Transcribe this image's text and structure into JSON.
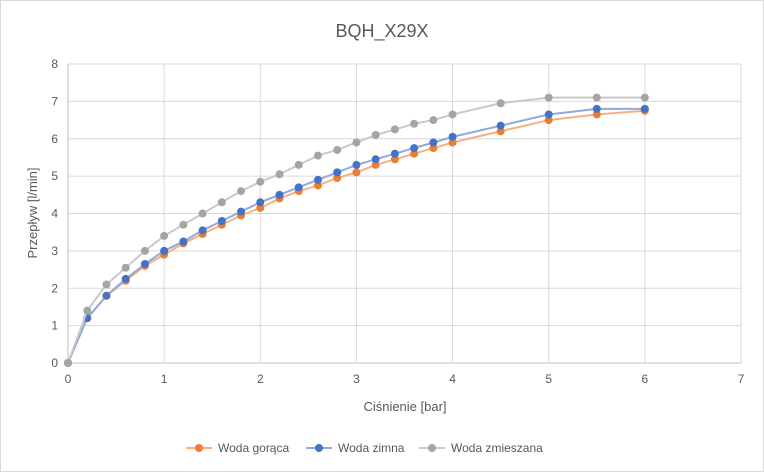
{
  "chart_data": {
    "type": "line",
    "title": "BQH_X29X",
    "xlabel": "Ciśnienie [bar]",
    "ylabel": "Przepływ [l/min]",
    "xlim": [
      0,
      7
    ],
    "ylim": [
      0,
      8
    ],
    "xticks": [
      "0",
      "1",
      "2",
      "3",
      "4",
      "5",
      "6",
      "7"
    ],
    "yticks": [
      "0",
      "1",
      "2",
      "3",
      "4",
      "5",
      "6",
      "7",
      "8"
    ],
    "grid": true,
    "legend_position": "bottom",
    "x": [
      0,
      0.2,
      0.4,
      0.6,
      0.8,
      1.0,
      1.2,
      1.4,
      1.6,
      1.8,
      2.0,
      2.2,
      2.4,
      2.6,
      2.8,
      3.0,
      3.2,
      3.4,
      3.6,
      3.8,
      4.0,
      4.5,
      5.0,
      5.5,
      6.0
    ],
    "series": [
      {
        "name": "Woda gorąca",
        "color": "#ED7D31",
        "line": "#F4B183",
        "values": [
          0,
          1.2,
          1.8,
          2.2,
          2.6,
          2.9,
          3.2,
          3.45,
          3.7,
          3.95,
          4.15,
          4.4,
          4.6,
          4.75,
          4.95,
          5.1,
          5.3,
          5.45,
          5.6,
          5.75,
          5.9,
          6.2,
          6.5,
          6.65,
          6.75
        ]
      },
      {
        "name": "Woda zimna",
        "color": "#4472C4",
        "line": "#8FAADC",
        "values": [
          0,
          1.2,
          1.8,
          2.25,
          2.65,
          3.0,
          3.25,
          3.55,
          3.8,
          4.05,
          4.3,
          4.5,
          4.7,
          4.9,
          5.1,
          5.3,
          5.45,
          5.6,
          5.75,
          5.9,
          6.05,
          6.35,
          6.65,
          6.8,
          6.8
        ]
      },
      {
        "name": "Woda zmieszana",
        "color": "#A5A5A5",
        "line": "#C9C9C9",
        "values": [
          0,
          1.4,
          2.1,
          2.55,
          3.0,
          3.4,
          3.7,
          4.0,
          4.3,
          4.6,
          4.85,
          5.05,
          5.3,
          5.55,
          5.7,
          5.9,
          6.1,
          6.25,
          6.4,
          6.5,
          6.65,
          6.95,
          7.1,
          7.1,
          7.1
        ]
      }
    ]
  }
}
